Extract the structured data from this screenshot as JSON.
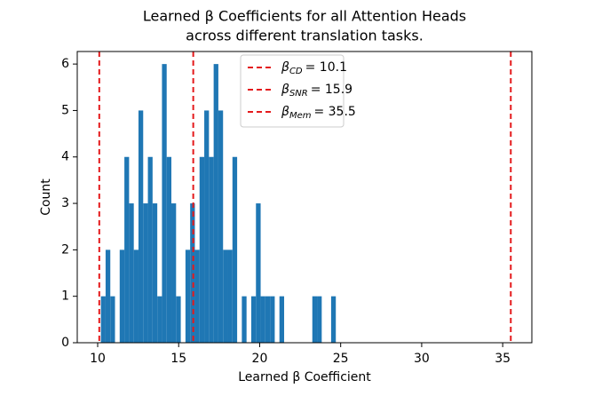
{
  "chart_data": {
    "type": "histogram",
    "title": [
      "Learned β Coefficients for all Attention Heads",
      "across different translation tasks."
    ],
    "x_label": "Learned β Coefficient",
    "y_label": "Count",
    "color": "#1f77b4",
    "bins": [
      10.2,
      10.49,
      10.78,
      11.07,
      11.36,
      11.65,
      11.94,
      12.23,
      12.52,
      12.81,
      13.1,
      13.39,
      13.68,
      13.97,
      14.26,
      14.55,
      14.84,
      15.13,
      15.42,
      15.71,
      16.0,
      16.29,
      16.58,
      16.87,
      17.16,
      17.45,
      17.74,
      18.03,
      18.32,
      18.61,
      18.9,
      19.19,
      19.48,
      19.77,
      20.06,
      20.35,
      20.64,
      20.93,
      21.22,
      21.51,
      21.8,
      22.09,
      22.38,
      22.67,
      22.96,
      23.25,
      23.54,
      23.83,
      24.12,
      24.41,
      24.7
    ],
    "values": [
      1,
      2,
      1,
      0,
      2,
      4,
      3,
      2,
      5,
      3,
      4,
      3,
      1,
      6,
      4,
      3,
      1,
      0,
      2,
      3,
      2,
      4,
      5,
      4,
      6,
      5,
      2,
      2,
      4,
      0,
      1,
      0,
      1,
      3,
      1,
      1,
      1,
      0,
      1,
      0,
      0,
      0,
      0,
      0,
      0,
      1,
      1,
      0,
      0,
      1
    ],
    "reference_lines": [
      {
        "symbol": "β",
        "subscript": "CD",
        "text": "= 10.1",
        "value": 10.1,
        "color": "#e41a1c"
      },
      {
        "symbol": "β",
        "subscript": "SNR",
        "text": "= 15.9",
        "value": 15.9,
        "color": "#e41a1c"
      },
      {
        "symbol": "β",
        "subscript": "Mem",
        "text": "= 35.5",
        "value": 35.5,
        "color": "#e41a1c"
      }
    ],
    "legend": "upper center",
    "xlim": [
      8.74,
      36.8
    ],
    "ylim": [
      0,
      6.27
    ],
    "xticks": [
      10,
      15,
      20,
      25,
      30,
      35
    ],
    "yticks": [
      0,
      1,
      2,
      3,
      4,
      5,
      6
    ]
  }
}
